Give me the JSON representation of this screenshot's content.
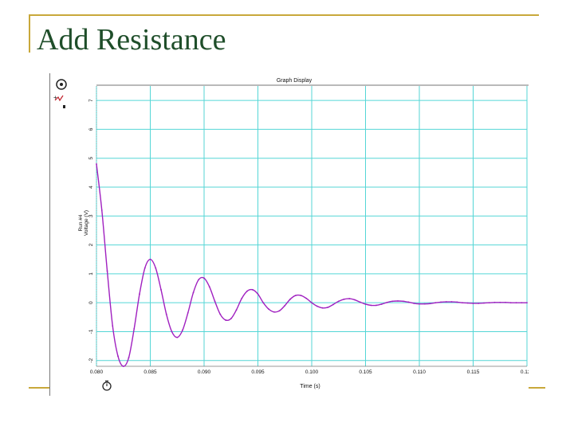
{
  "slide": {
    "title": "Add Resistance"
  },
  "graph": {
    "display_title": "Graph Display",
    "ylabel_lines": [
      "Run #4",
      "Voltage (V)"
    ]
  },
  "colors": {
    "title": "#1f4e2a",
    "accent_lines": "#c8a83a",
    "grid": "#54d6d6",
    "trace": "#a020c0"
  },
  "icons": [
    "probe-icon",
    "stopwatch-icon"
  ],
  "chart_data": {
    "type": "line",
    "title": "Graph Display",
    "xlabel": "Time (s)",
    "ylabel": "Voltage (V)",
    "xlim": [
      0.08,
      0.12
    ],
    "ylim": [
      -2.2,
      7.5
    ],
    "xticks": [
      0.08,
      0.085,
      0.09,
      0.095,
      0.1,
      0.105,
      0.11,
      0.115,
      0.12
    ],
    "xtick_labels": [
      "0.080",
      "0.085",
      "0.090",
      "0.095",
      "0.100",
      "0.105",
      "0.110",
      "0.115",
      "0.120"
    ],
    "yticks": [
      -2,
      -1,
      0,
      1,
      2,
      3,
      4,
      5,
      6,
      7
    ],
    "ytick_labels": [
      "-2",
      "-1",
      "0",
      "1",
      "2",
      "3",
      "4",
      "5",
      "6",
      "7"
    ],
    "grid": true,
    "series": [
      {
        "name": "Run #4",
        "x": [
          0.08,
          0.0805,
          0.081,
          0.0815,
          0.082,
          0.0825,
          0.083,
          0.0835,
          0.084,
          0.0845,
          0.085,
          0.0855,
          0.086,
          0.0865,
          0.087,
          0.0875,
          0.088,
          0.0885,
          0.089,
          0.0895,
          0.09,
          0.0905,
          0.091,
          0.0915,
          0.092,
          0.0925,
          0.093,
          0.0935,
          0.094,
          0.0945,
          0.095,
          0.0955,
          0.096,
          0.0965,
          0.097,
          0.0975,
          0.098,
          0.0985,
          0.099,
          0.0995,
          0.1,
          0.1005,
          0.101,
          0.1015,
          0.102,
          0.1025,
          0.103,
          0.1035,
          0.104,
          0.1045,
          0.105,
          0.1055,
          0.106,
          0.1065,
          0.107,
          0.1075,
          0.108,
          0.1085,
          0.109,
          0.1095,
          0.11,
          0.1105,
          0.111,
          0.1115,
          0.112,
          0.1125,
          0.113,
          0.1135,
          0.114,
          0.1145,
          0.115,
          0.1155,
          0.116,
          0.1165,
          0.117,
          0.1175,
          0.118,
          0.1185,
          0.119,
          0.1195,
          0.12
        ],
        "y": [
          4.8,
          3.2,
          1.1,
          -0.8,
          -1.85,
          -2.2,
          -1.9,
          -0.9,
          0.3,
          1.2,
          1.5,
          1.2,
          0.45,
          -0.4,
          -1.0,
          -1.2,
          -0.95,
          -0.35,
          0.35,
          0.8,
          0.85,
          0.55,
          0.05,
          -0.4,
          -0.6,
          -0.55,
          -0.25,
          0.15,
          0.4,
          0.45,
          0.3,
          0.0,
          -0.22,
          -0.32,
          -0.28,
          -0.1,
          0.12,
          0.25,
          0.25,
          0.15,
          0.0,
          -0.12,
          -0.18,
          -0.16,
          -0.06,
          0.05,
          0.12,
          0.14,
          0.1,
          0.02,
          -0.05,
          -0.09,
          -0.09,
          -0.05,
          0.01,
          0.05,
          0.06,
          0.05,
          0.02,
          -0.02,
          -0.04,
          -0.04,
          -0.03,
          0.0,
          0.02,
          0.03,
          0.03,
          0.02,
          0.0,
          -0.01,
          -0.02,
          -0.02,
          -0.01,
          0.0,
          0.01,
          0.01,
          0.01,
          0.0,
          0.0,
          0.0,
          0.0
        ]
      }
    ]
  }
}
